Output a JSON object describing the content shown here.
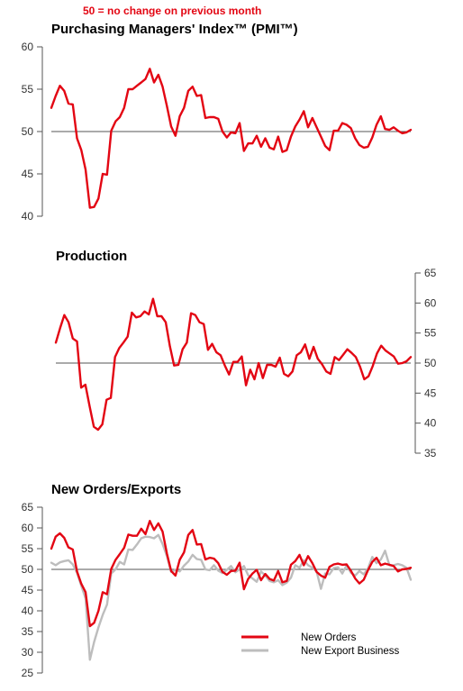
{
  "note": "50 = no change on previous month",
  "colors": {
    "primary": "#e30613",
    "secondary": "#bdbdbd",
    "axis": "#555555"
  },
  "chart_data": [
    {
      "type": "line",
      "title": "Purchasing Managers' Index™ (PMI™)",
      "reference_line": 50,
      "ylim": [
        40,
        60
      ],
      "yticks": [
        "40",
        "45",
        "50",
        "55",
        "60"
      ],
      "y_axis_side": "left",
      "series": [
        {
          "values": [
            52.8,
            54.2,
            55.4,
            54.8,
            53.3,
            53.2,
            49.2,
            47.8,
            45.5,
            41.0,
            41.1,
            42.1,
            45.0,
            44.9,
            50.1,
            51.2,
            51.7,
            52.8,
            55.0,
            55.0,
            55.4,
            55.8,
            56.2,
            57.4,
            55.8,
            56.7,
            55.3,
            53.0,
            50.6,
            49.5,
            51.8,
            52.8,
            54.8,
            55.3,
            54.2,
            54.3,
            51.6,
            51.7,
            51.7,
            51.5,
            50.0,
            49.3,
            49.9,
            49.8,
            51.0,
            47.7,
            48.6,
            48.6,
            49.5,
            48.2,
            49.2,
            48.1,
            47.9,
            49.4,
            47.6,
            47.8,
            49.4,
            50.6,
            51.4,
            52.4,
            50.5,
            51.6,
            50.5,
            49.4,
            48.3,
            47.8,
            50.1,
            50.1,
            51.0,
            50.8,
            50.4,
            49.2,
            48.4,
            48.1,
            48.2,
            49.3,
            50.8,
            51.8,
            50.3,
            50.2,
            50.5,
            50.1,
            49.8,
            49.9,
            50.2
          ]
        }
      ]
    },
    {
      "type": "line",
      "title": "Production",
      "reference_line": 50,
      "ylim": [
        35,
        65
      ],
      "yticks": [
        "35",
        "40",
        "45",
        "50",
        "55",
        "60",
        "65"
      ],
      "y_axis_side": "right",
      "series": [
        {
          "values": [
            53.4,
            55.8,
            58.0,
            56.8,
            54.1,
            53.6,
            45.9,
            46.4,
            42.8,
            39.4,
            38.9,
            39.8,
            43.9,
            44.2,
            51.0,
            52.5,
            53.4,
            54.4,
            58.4,
            57.6,
            57.8,
            58.6,
            58.1,
            60.7,
            57.8,
            57.8,
            56.8,
            52.8,
            49.6,
            49.7,
            52.3,
            53.4,
            58.3,
            58.0,
            56.8,
            56.5,
            52.2,
            53.2,
            51.8,
            51.3,
            49.6,
            48.1,
            50.2,
            50.2,
            51.1,
            46.3,
            48.9,
            47.3,
            50.0,
            47.5,
            49.7,
            49.7,
            49.4,
            50.9,
            48.2,
            47.8,
            48.6,
            51.3,
            51.8,
            53.1,
            50.7,
            52.7,
            50.7,
            49.8,
            48.6,
            48.2,
            51.0,
            50.5,
            51.4,
            52.3,
            51.7,
            51.0,
            49.4,
            47.3,
            47.8,
            49.5,
            51.6,
            52.9,
            52.1,
            51.6,
            51.1,
            49.9,
            50.0,
            50.3,
            51.0
          ]
        }
      ]
    },
    {
      "type": "line",
      "title": "New Orders/Exports",
      "reference_line": 50,
      "ylim": [
        25,
        65
      ],
      "yticks": [
        "25",
        "30",
        "35",
        "40",
        "45",
        "50",
        "55",
        "60",
        "65"
      ],
      "y_axis_side": "left",
      "series": [
        {
          "name": "New Orders",
          "values": [
            55.0,
            57.9,
            58.7,
            57.6,
            55.3,
            54.8,
            49.5,
            46.5,
            44.5,
            36.3,
            37.1,
            40.0,
            44.5,
            44.0,
            50.1,
            52.3,
            53.7,
            55.2,
            58.4,
            58.1,
            58.1,
            59.8,
            58.5,
            61.7,
            59.5,
            61.1,
            59.1,
            53.8,
            49.6,
            48.5,
            52.3,
            54.1,
            58.3,
            59.5,
            56.0,
            56.1,
            52.4,
            52.8,
            52.6,
            51.5,
            49.4,
            48.7,
            49.6,
            49.7,
            51.6,
            45.2,
            47.7,
            49.0,
            49.9,
            47.4,
            48.9,
            47.7,
            47.3,
            49.6,
            46.9,
            47.2,
            51.1,
            52.0,
            53.5,
            51.0,
            53.2,
            51.5,
            49.4,
            48.5,
            48.0,
            50.6,
            51.2,
            51.4,
            51.1,
            51.2,
            49.7,
            47.8,
            46.6,
            47.5,
            49.8,
            51.8,
            52.8,
            51.0,
            51.4,
            51.1,
            50.8,
            49.5,
            50.0,
            50.1,
            50.4
          ]
        },
        {
          "name": "New Export Business",
          "values": [
            51.6,
            51.0,
            51.7,
            52.0,
            52.2,
            51.2,
            49.2,
            46.0,
            43.0,
            28.2,
            32.5,
            36.0,
            39.0,
            41.5,
            49.0,
            50.0,
            51.8,
            51.2,
            54.8,
            54.7,
            56.0,
            57.5,
            57.9,
            57.8,
            57.5,
            58.3,
            56.1,
            53.2,
            49.4,
            49.9,
            49.5,
            50.9,
            51.9,
            53.5,
            52.5,
            52.3,
            50.0,
            49.8,
            51.0,
            49.7,
            49.1,
            49.9,
            50.8,
            49.3,
            50.0,
            50.8,
            48.6,
            47.8,
            47.0,
            49.5,
            48.5,
            47.2,
            46.9,
            47.4,
            46.2,
            46.8,
            48.0,
            51.0,
            50.4,
            52.2,
            51.0,
            50.4,
            49.5,
            45.3,
            49.0,
            48.8,
            50.3,
            50.5,
            49.0,
            51.0,
            49.2,
            48.5,
            49.6,
            48.8,
            50.2,
            53.0,
            51.5,
            52.4,
            54.5,
            51.0,
            51.0,
            51.3,
            51.0,
            50.4,
            47.5
          ]
        }
      ],
      "legend": "bottom-right"
    }
  ]
}
